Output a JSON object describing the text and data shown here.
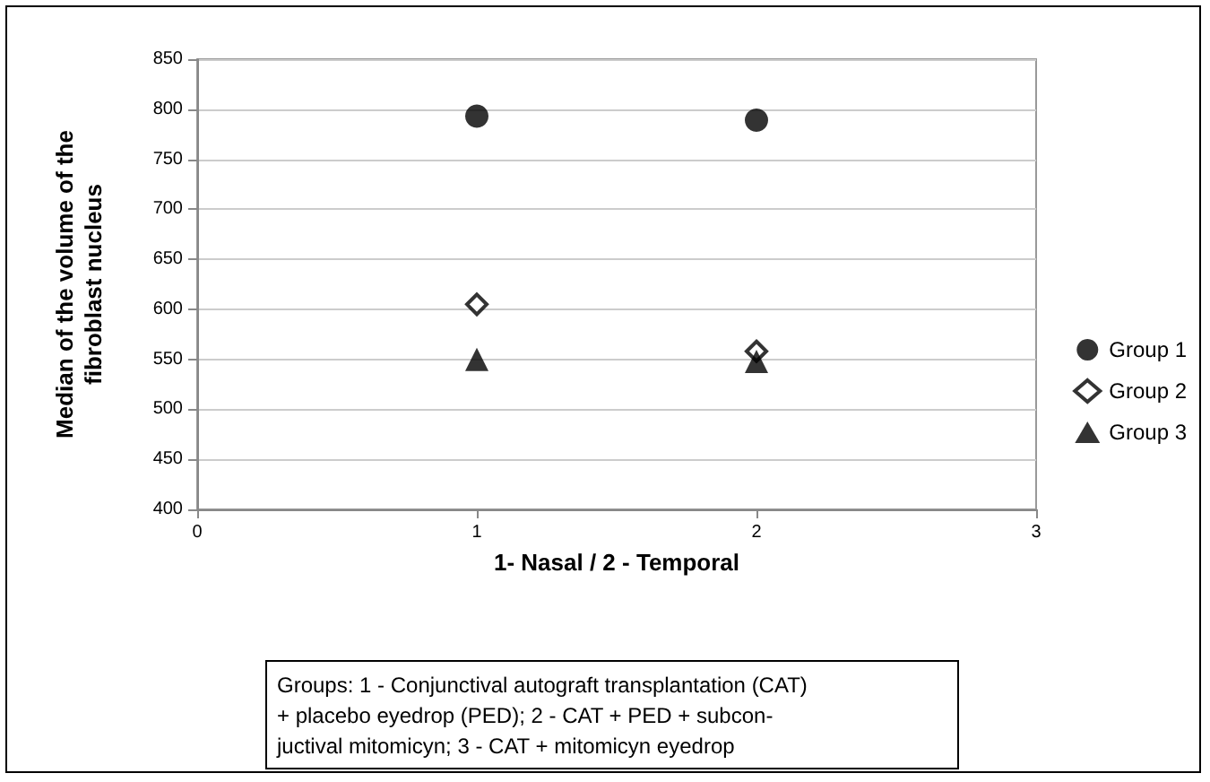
{
  "chart_data": {
    "type": "scatter",
    "xlabel": "1- Nasal / 2 - Temporal",
    "ylabel": "Median of the volume of the\nfibroblast nucleus",
    "x": [
      1,
      2
    ],
    "series": [
      {
        "name": "Group 1",
        "color": "#000000",
        "marker": "circle",
        "values": [
          793,
          789
        ]
      },
      {
        "name": "Group 2",
        "color": "#000000",
        "marker": "diamond",
        "values": [
          605,
          558
        ]
      },
      {
        "name": "Group 3",
        "color": "#000000",
        "marker": "triangle",
        "values": [
          550,
          548
        ]
      }
    ],
    "xlim": [
      0,
      3
    ],
    "xticks": [
      0,
      1,
      2,
      3
    ],
    "ylim": [
      400,
      850
    ],
    "yticks": [
      400,
      450,
      500,
      550,
      600,
      650,
      700,
      750,
      800,
      850
    ],
    "grid": "y",
    "legend": "right",
    "annotations": [
      "Groups: 1 - Conjunctival autograft transplantation (CAT)\n+ placebo eyedrop (PED); 2 - CAT + PED + subcon-\njuctival mitomicyn; 3 - CAT + mitomicyn eyedrop"
    ]
  }
}
